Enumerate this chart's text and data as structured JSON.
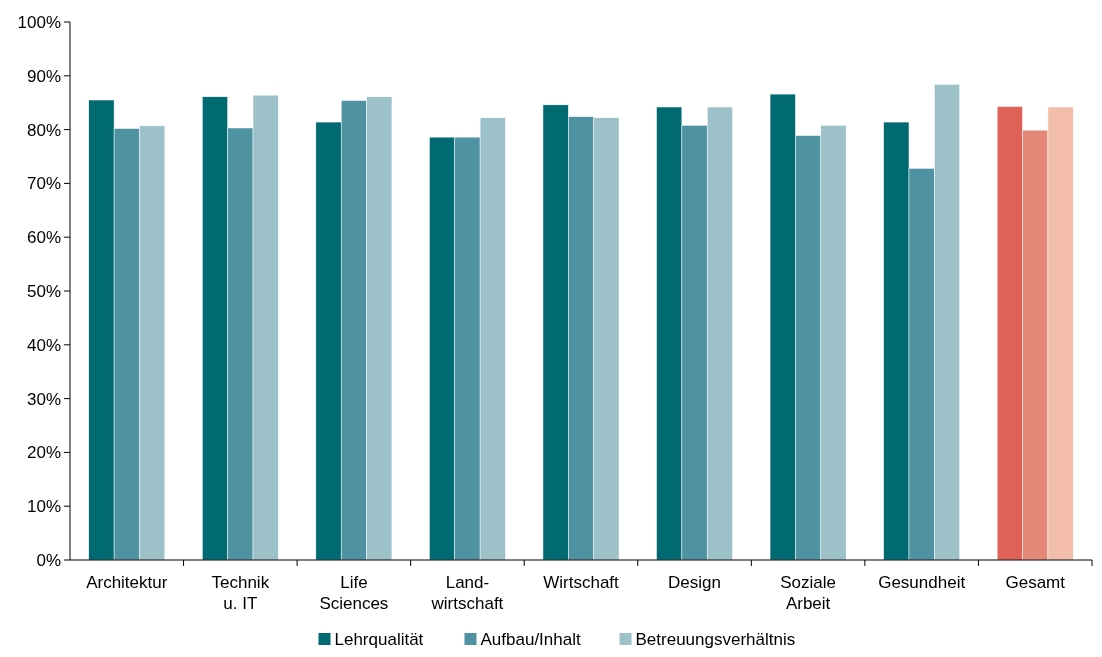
{
  "chart_data": {
    "type": "bar",
    "categories": [
      "Architektur",
      "Technik\nu. IT",
      "Life\nSciences",
      "Land-\nwirtschaft",
      "Wirtschaft",
      "Design",
      "Soziale\nArbeit",
      "Gesundheit",
      "Gesamt"
    ],
    "series": [
      {
        "name": "Lehrqualität",
        "color": "#006a72",
        "colors": [
          "#006a72",
          "#006a72",
          "#006a72",
          "#006a72",
          "#006a72",
          "#006a72",
          "#006a72",
          "#006a72",
          "#de6258"
        ],
        "values": [
          85.5,
          86.1,
          81.4,
          78.6,
          84.6,
          84.2,
          86.6,
          81.4,
          84.3
        ]
      },
      {
        "name": "Aufbau/Inhalt",
        "color": "#4f93a3",
        "colors": [
          "#4f93a3",
          "#4f93a3",
          "#4f93a3",
          "#4f93a3",
          "#4f93a3",
          "#4f93a3",
          "#4f93a3",
          "#4f93a3",
          "#e58877"
        ],
        "values": [
          80.2,
          80.3,
          85.4,
          78.6,
          82.4,
          80.8,
          78.9,
          72.8,
          79.9
        ]
      },
      {
        "name": "Betreuungsverhältnis",
        "color": "#9cc1c9",
        "colors": [
          "#9cc1c9",
          "#9cc1c9",
          "#9cc1c9",
          "#9cc1c9",
          "#9cc1c9",
          "#9cc1c9",
          "#9cc1c9",
          "#9cc1c9",
          "#f2bea9"
        ],
        "values": [
          80.7,
          86.4,
          86.1,
          82.2,
          82.2,
          84.2,
          80.8,
          88.4,
          84.2
        ]
      }
    ],
    "ylim": [
      0,
      100
    ],
    "yticks": [
      {
        "value": 0,
        "label": "0%"
      },
      {
        "value": 10,
        "label": "10%"
      },
      {
        "value": 20,
        "label": "20%"
      },
      {
        "value": 30,
        "label": "30%"
      },
      {
        "value": 40,
        "label": "40%"
      },
      {
        "value": 50,
        "label": "50%"
      },
      {
        "value": 60,
        "label": "60%"
      },
      {
        "value": 70,
        "label": "70%"
      },
      {
        "value": 80,
        "label": "80%"
      },
      {
        "value": 90,
        "label": "90%"
      },
      {
        "value": 100,
        "label": "100%"
      }
    ],
    "grid": false,
    "legend": "bottom"
  }
}
